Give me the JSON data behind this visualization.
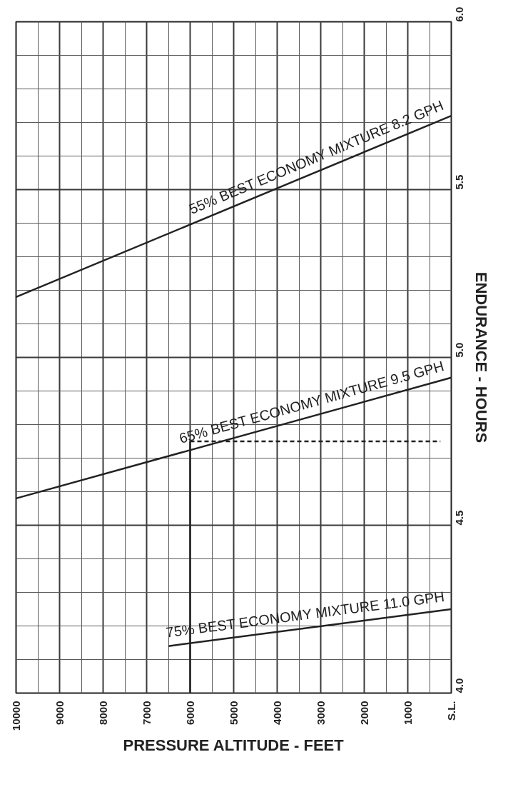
{
  "chart_data": {
    "type": "line",
    "xlabel": "PRESSURE ALTITUDE - FEET",
    "ylabel": "ENDURANCE - HOURS",
    "xlim": [
      10000,
      0
    ],
    "ylim": [
      4.0,
      6.0
    ],
    "xticks": [
      10000,
      9000,
      8000,
      7000,
      6000,
      5000,
      4000,
      3000,
      2000,
      1000,
      {
        "value": 0,
        "label": "S.L."
      }
    ],
    "yticks": [
      {
        "value": 4,
        "label": "4.0"
      },
      4.5,
      {
        "value": 5,
        "label": "5.0"
      },
      5.5,
      {
        "value": 6,
        "label": "6.0"
      }
    ],
    "grid": true,
    "marker": "none",
    "series": [
      {
        "name": "55% BEST ECONOMY MIXTURE  8.2 GPH",
        "color": "#222222",
        "x": [
          10000,
          0
        ],
        "values": [
          5.18,
          5.72
        ]
      },
      {
        "name": "65% BEST ECONOMY MIXTURE  9.5 GPH",
        "color": "#222222",
        "x": [
          10000,
          0
        ],
        "values": [
          4.58,
          4.94
        ]
      },
      {
        "name": "75% BEST ECONOMY MIXTURE  11.0 GPH",
        "color": "#222222",
        "x": [
          6500,
          0
        ],
        "values": [
          4.14,
          4.25
        ]
      },
      {
        "color": "#222222",
        "x": [
          6000,
          6000
        ],
        "values": [
          4.0,
          4.75
        ],
        "line_style": "solid"
      },
      {
        "color": "#222222",
        "x": [
          6000,
          250
        ],
        "values": [
          4.75,
          4.75
        ],
        "line_style": "dashed"
      }
    ]
  }
}
